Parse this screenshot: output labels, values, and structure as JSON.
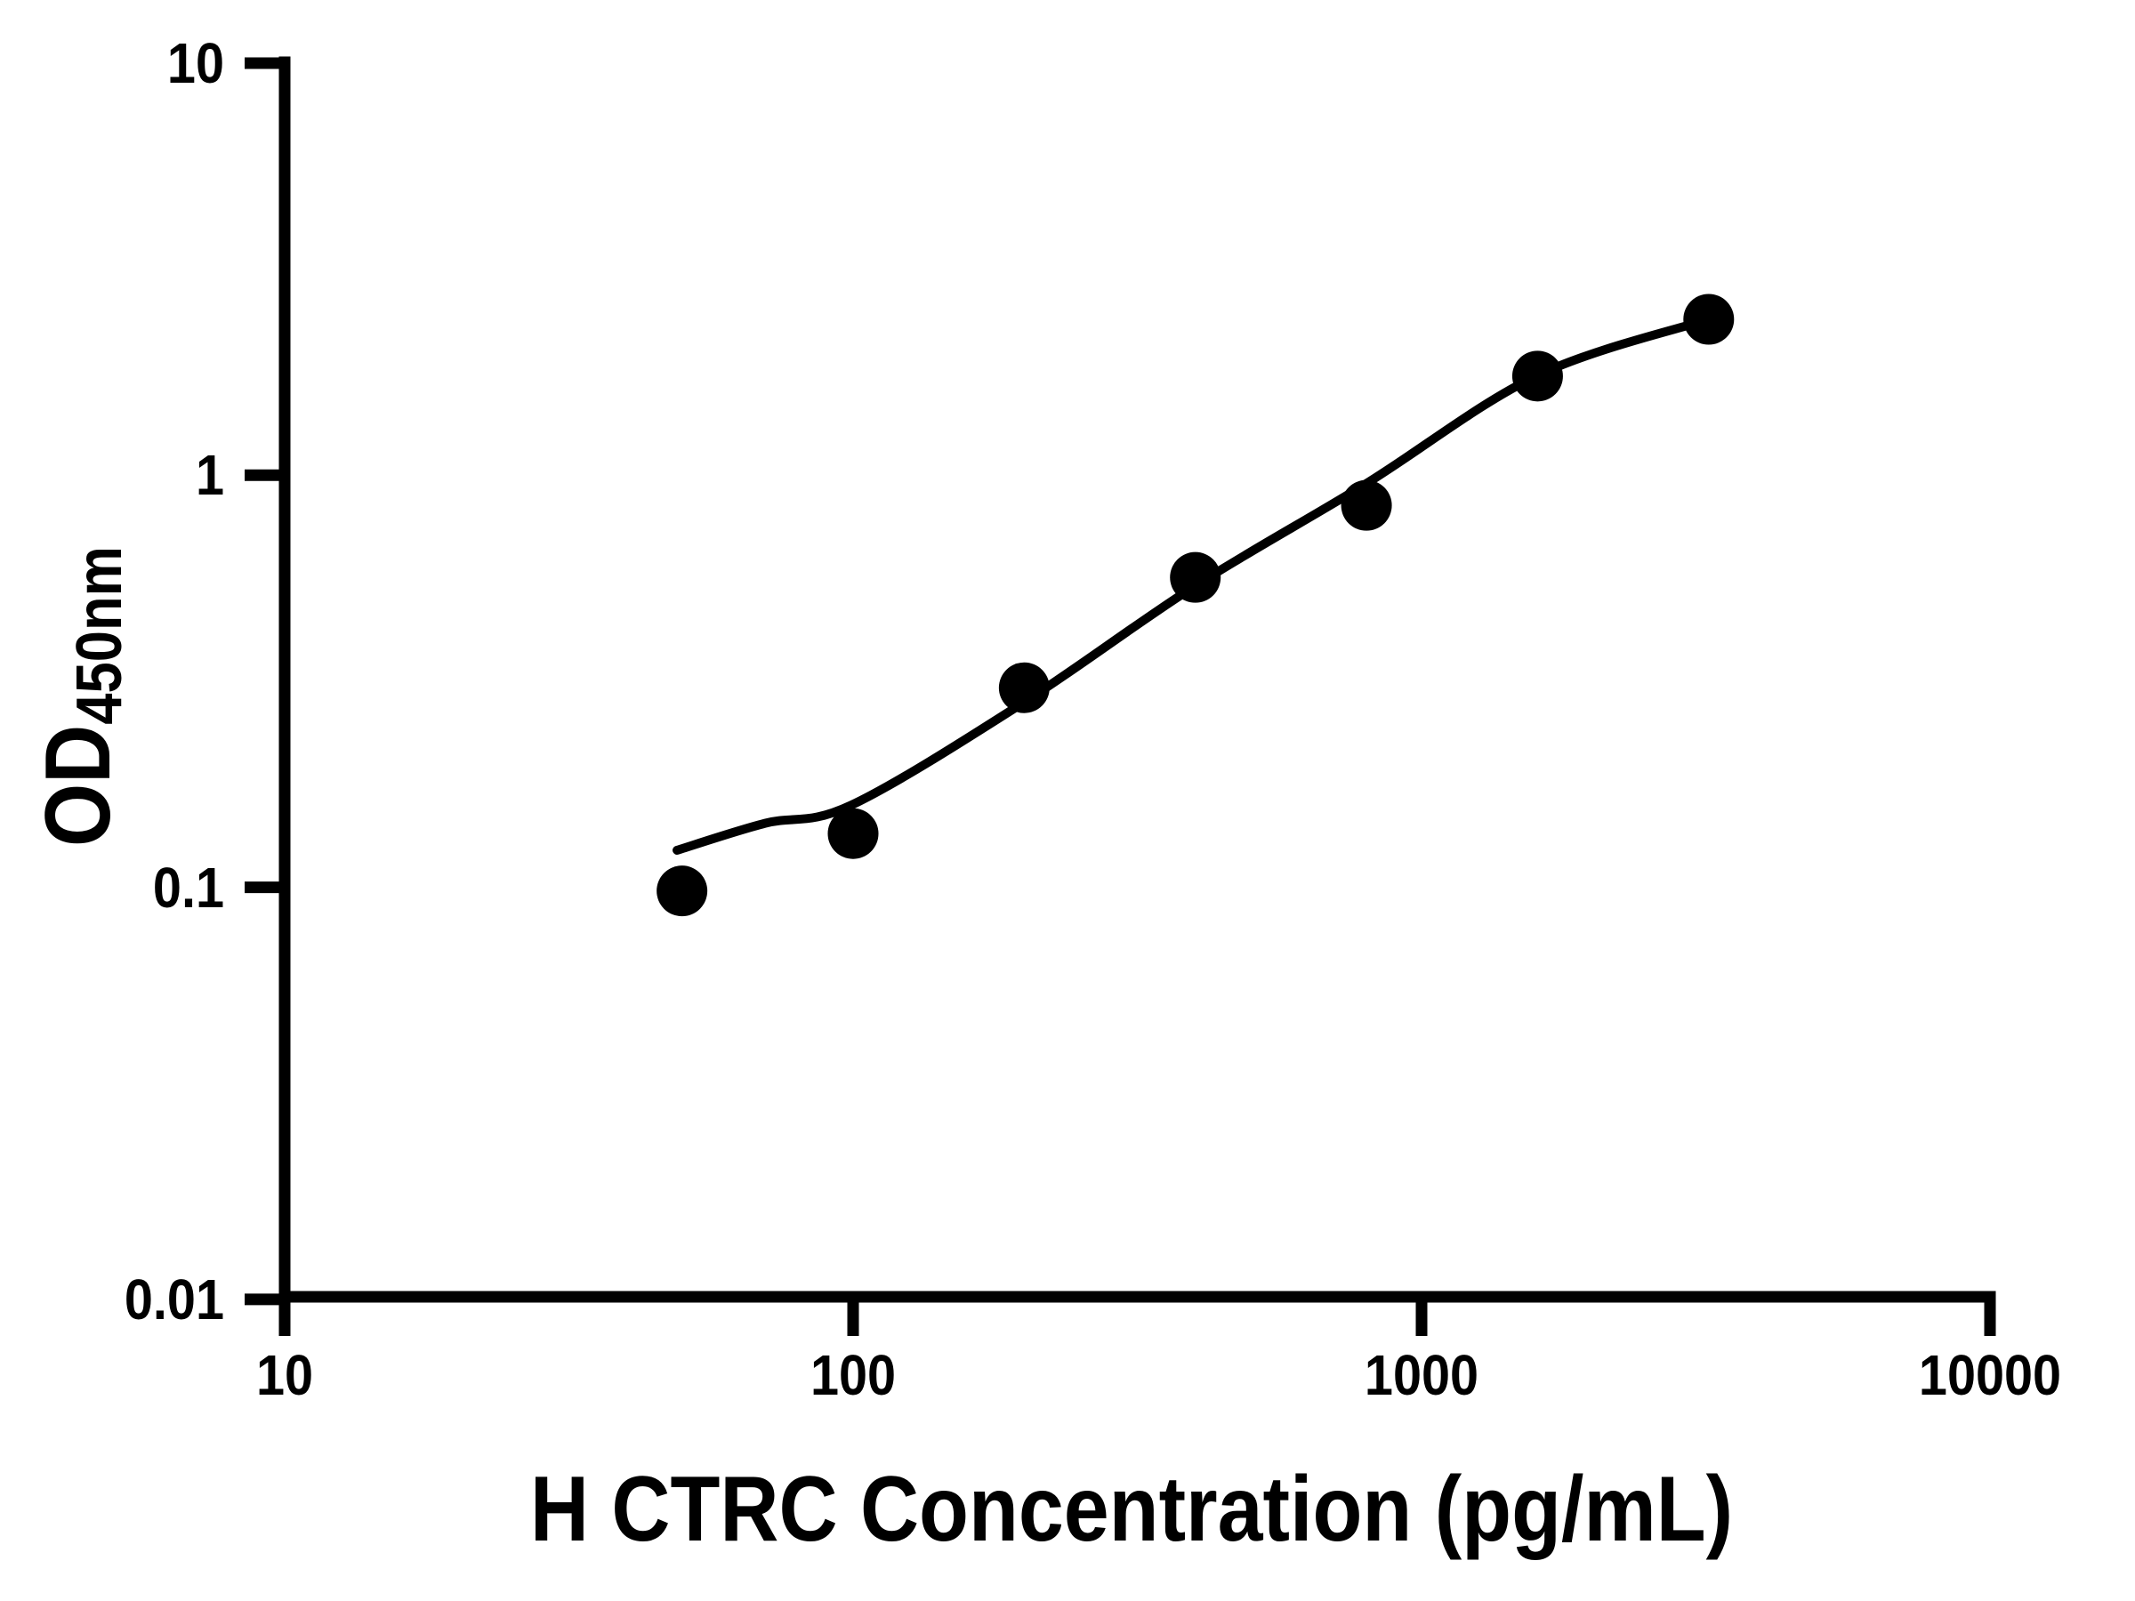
{
  "chart_data": {
    "type": "scatter",
    "title": "",
    "xlabel": "H CTRC Concentration (pg/mL)",
    "ylabel_main": "OD",
    "ylabel_sub": "450nm",
    "x_scale": "log",
    "y_scale": "log",
    "xlim": [
      10,
      10000
    ],
    "ylim": [
      0.01,
      10
    ],
    "grid": false,
    "legend": false,
    "x_ticks": [
      {
        "value": 10,
        "label": "10"
      },
      {
        "value": 100,
        "label": "100"
      },
      {
        "value": 1000,
        "label": "1000"
      },
      {
        "value": 10000,
        "label": "10000"
      }
    ],
    "y_ticks": [
      {
        "value": 10,
        "label": "10"
      },
      {
        "value": 1,
        "label": "1"
      },
      {
        "value": 0.1,
        "label": "0.1"
      },
      {
        "value": 0.01,
        "label": "0.01"
      }
    ],
    "points": [
      {
        "x": 50,
        "y": 0.098
      },
      {
        "x": 100,
        "y": 0.135
      },
      {
        "x": 200,
        "y": 0.305
      },
      {
        "x": 400,
        "y": 0.565
      },
      {
        "x": 800,
        "y": 0.845
      },
      {
        "x": 1600,
        "y": 1.74
      },
      {
        "x": 3200,
        "y": 2.39
      }
    ],
    "fit_curve_samples": [
      {
        "x": 49,
        "y": 0.123
      },
      {
        "x": 70,
        "y": 0.143
      },
      {
        "x": 99,
        "y": 0.158
      },
      {
        "x": 198,
        "y": 0.279
      },
      {
        "x": 398,
        "y": 0.537
      },
      {
        "x": 795,
        "y": 0.95
      },
      {
        "x": 1590,
        "y": 1.74
      },
      {
        "x": 3200,
        "y": 2.39
      }
    ],
    "styles": {
      "marker_shape": "filled-circle",
      "point_color": "#000000",
      "curve_color": "#000000",
      "axis_color": "#000000",
      "text_color": "#000000",
      "background": "#ffffff"
    }
  }
}
